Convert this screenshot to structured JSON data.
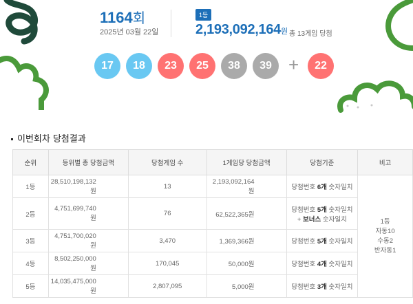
{
  "draw": {
    "round_number": "1164",
    "round_suffix": "회",
    "date": "2025년 03월 22일",
    "rank_badge": "1등",
    "first_prize_amount": "2,193,092,164",
    "first_prize_unit": "원",
    "prize_note": "총 13게임 당첨",
    "numbers": [
      "17",
      "18",
      "23",
      "25",
      "38",
      "39"
    ],
    "plus": "+",
    "bonus": "22",
    "ball_colors": [
      "#69c8f2",
      "#69c8f2",
      "#ff7272",
      "#ff7272",
      "#aaaaaa",
      "#aaaaaa"
    ],
    "bonus_color": "#ff7272"
  },
  "section": {
    "title": "이번회차 당첨결과"
  },
  "table": {
    "headers": [
      "순위",
      "등위별 총 당첨금액",
      "당첨게임 수",
      "1게임당 당첨금액",
      "당첨기준",
      "비고"
    ],
    "rows": [
      {
        "rank": "1등",
        "total": "28,510,198,132원",
        "games": "13",
        "per_game": "2,193,092,164원",
        "crit_pre": "당첨번호 ",
        "crit_bold": "6개",
        "crit_post": " 숫자일치",
        "crit2": ""
      },
      {
        "rank": "2등",
        "total": "4,751,699,740원",
        "games": "76",
        "per_game": "62,522,365원",
        "crit_pre": "당첨번호 ",
        "crit_bold": "5개",
        "crit_post": " 숫자일치",
        "crit2_pre": "+ ",
        "crit2_bold": "보너스",
        "crit2_post": " 숫자일치"
      },
      {
        "rank": "3등",
        "total": "4,751,700,020원",
        "games": "3,470",
        "per_game": "1,369,366원",
        "crit_pre": "당첨번호 ",
        "crit_bold": "5개",
        "crit_post": " 숫자일치"
      },
      {
        "rank": "4등",
        "total": "8,502,250,000원",
        "games": "170,045",
        "per_game": "50,000원",
        "crit_pre": "당첨번호 ",
        "crit_bold": "4개",
        "crit_post": " 숫자일치"
      },
      {
        "rank": "5등",
        "total": "14,035,475,000원",
        "games": "2,807,095",
        "per_game": "5,000원",
        "crit_pre": "당첨번호 ",
        "crit_bold": "3개",
        "crit_post": " 숫자일치"
      }
    ],
    "remark_lines": [
      "1등",
      "자동10",
      "수동2",
      "반자동1"
    ]
  },
  "colors": {
    "brand_blue": "#1d6fb8",
    "deco_green": "#4a9a3a",
    "deco_dark": "#1f4a3a"
  }
}
